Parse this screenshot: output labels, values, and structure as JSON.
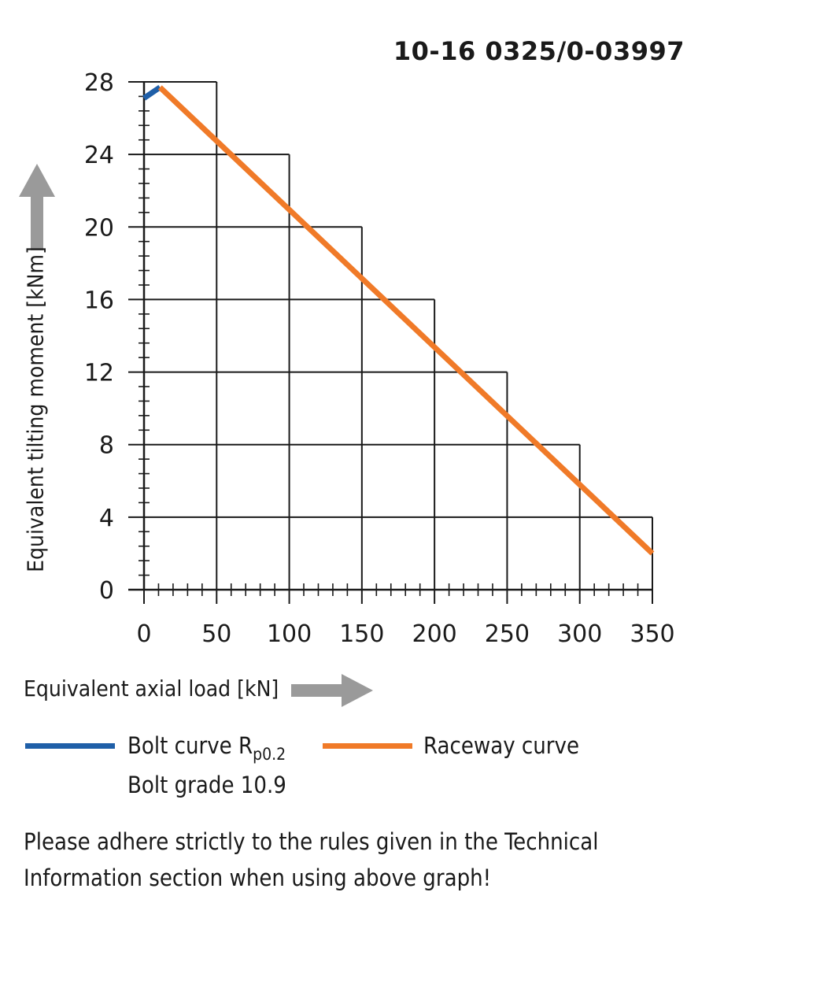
{
  "chart_data": {
    "type": "line",
    "title": "10-16 0325/0-03997",
    "xlabel": "Equivalent axial load [kN]",
    "ylabel": "Equivalent tilting moment [kNm]",
    "xlim": [
      0,
      350
    ],
    "ylim": [
      0,
      28
    ],
    "x_ticks": [
      0,
      50,
      100,
      150,
      200,
      250,
      300,
      350
    ],
    "y_ticks": [
      0,
      4,
      8,
      12,
      16,
      20,
      24,
      28
    ],
    "grid": true,
    "series": [
      {
        "name": "Bolt curve",
        "color": "#1f5fa8",
        "points": [
          [
            0,
            27.1
          ],
          [
            11,
            27.7
          ]
        ]
      },
      {
        "name": "Raceway curve",
        "color": "#f07a28",
        "points": [
          [
            11,
            27.7
          ],
          [
            350,
            2.0
          ]
        ]
      }
    ]
  },
  "legend": {
    "bolt_label": "Bolt curve  R",
    "bolt_sub": "p0.2",
    "bolt_grade": "Bolt grade 10.9",
    "raceway_label": "Raceway curve"
  },
  "note_line1": "Please adhere strictly to the rules given in the Technical",
  "note_line2": "Information section when using above graph!",
  "colors": {
    "arrow": "#9a9a9a",
    "grid": "#1a1a1a"
  }
}
